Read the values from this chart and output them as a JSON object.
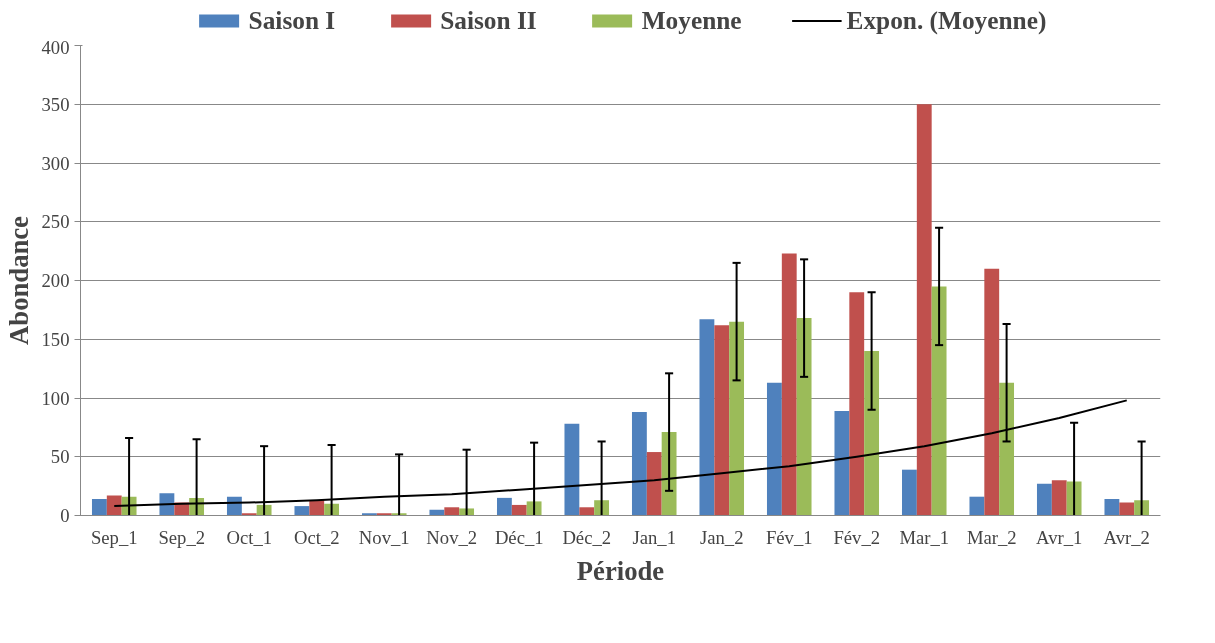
{
  "chart_data": {
    "type": "bar",
    "xlabel": "Période",
    "ylabel": "Abondance",
    "categories": [
      "Sep_1",
      "Sep_2",
      "Oct_1",
      "Oct_2",
      "Nov_1",
      "Nov_2",
      "Déc_1",
      "Déc_2",
      "Jan_1",
      "Jan_2",
      "Fév_1",
      "Fév_2",
      "Mar_1",
      "Mar_2",
      "Avr_1",
      "Avr_2"
    ],
    "series": [
      {
        "name": "Saison I",
        "color": "#4f81bd",
        "values": [
          14,
          19,
          16,
          8,
          2,
          5,
          15,
          78,
          88,
          167,
          113,
          89,
          39,
          16,
          27,
          14
        ]
      },
      {
        "name": "Saison II",
        "color": "#c0504d",
        "values": [
          17,
          11,
          2,
          13,
          2,
          7,
          9,
          7,
          54,
          162,
          223,
          190,
          350,
          210,
          30,
          11
        ]
      },
      {
        "name": "Moyenne",
        "color": "#9bbb59",
        "values": [
          16,
          15,
          9,
          10,
          2,
          6,
          12,
          13,
          71,
          165,
          168,
          140,
          195,
          113,
          29,
          13
        ],
        "errors": [
          [
            0,
            66
          ],
          [
            0,
            65
          ],
          [
            0,
            59
          ],
          [
            0,
            60
          ],
          [
            0,
            52
          ],
          [
            0,
            56
          ],
          [
            0,
            62
          ],
          [
            0,
            63
          ],
          [
            21,
            121
          ],
          [
            115,
            215
          ],
          [
            118,
            218
          ],
          [
            90,
            190
          ],
          [
            145,
            245
          ],
          [
            63,
            163
          ],
          [
            0,
            79
          ],
          [
            0,
            63
          ]
        ]
      },
      {
        "name": "Expon. (Moyenne)",
        "type": "line",
        "color": "#000000",
        "values": [
          8,
          10,
          11,
          13,
          16,
          18,
          22,
          26,
          30,
          36,
          42,
          50,
          59,
          70,
          83,
          98
        ]
      }
    ],
    "ylim": [
      0,
      400
    ],
    "yticks": [
      0,
      50,
      100,
      150,
      200,
      250,
      300,
      350,
      400
    ],
    "grid": "y",
    "legend": "top"
  }
}
